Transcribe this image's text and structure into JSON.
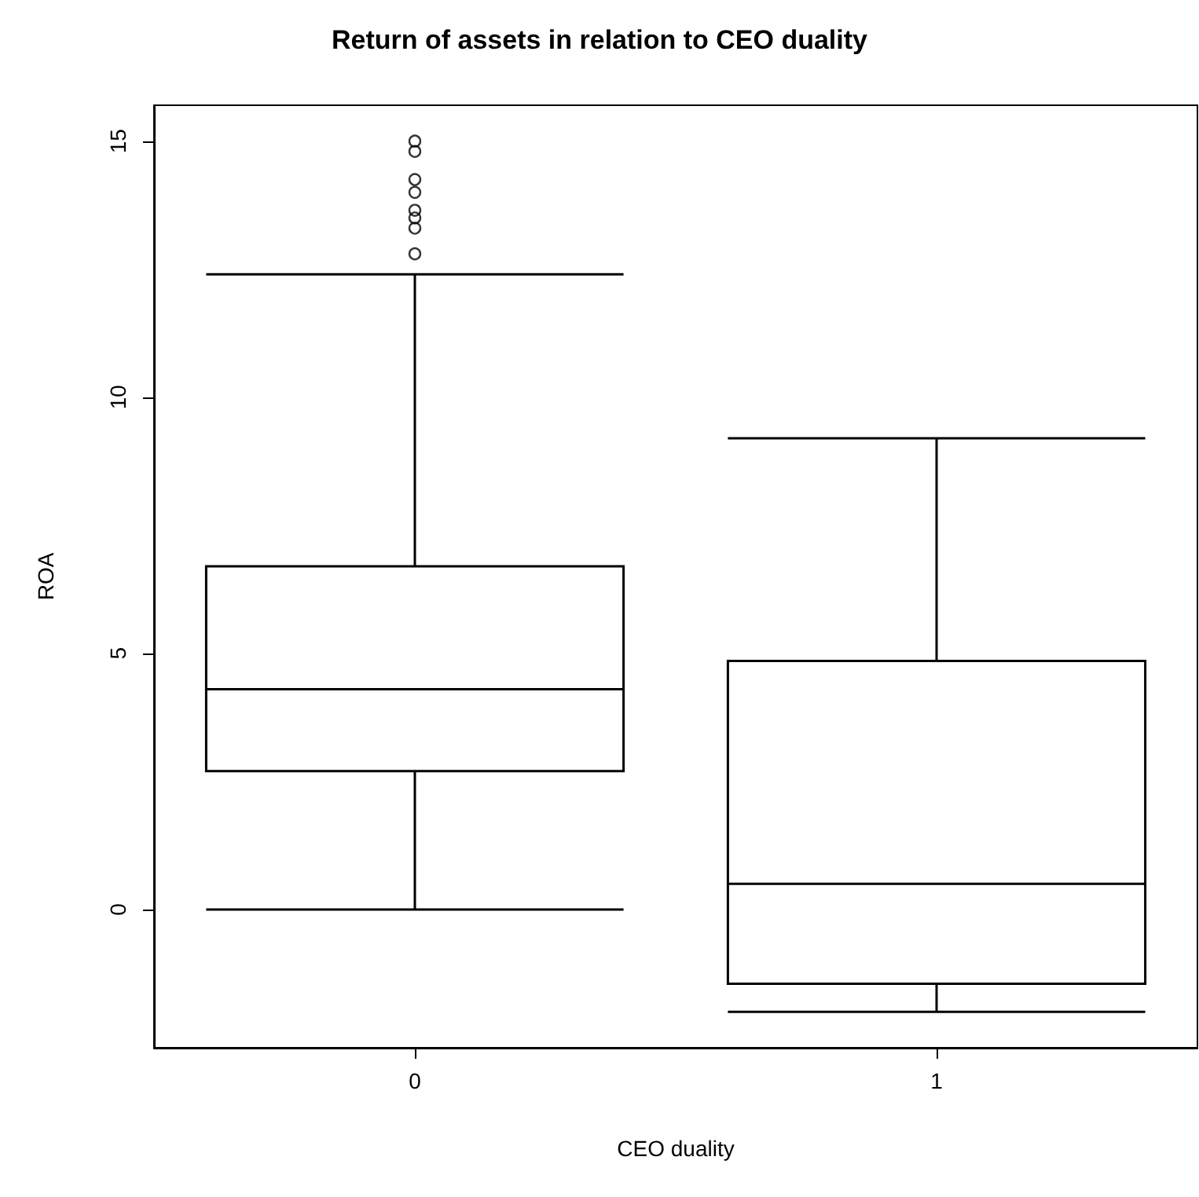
{
  "chart_data": {
    "type": "box",
    "title": "Return of assets in relation to CEO duality",
    "xlabel": "CEO duality",
    "ylabel": "ROA",
    "categories": [
      "0",
      "1"
    ],
    "boxes": [
      {
        "low": 0,
        "q1": 2.7,
        "median": 4.3,
        "q3": 6.7,
        "high": 12.4,
        "outliers": [
          15.0,
          14.8,
          14.25,
          14.0,
          13.65,
          13.5,
          13.3,
          12.8
        ]
      },
      {
        "low": -2.0,
        "q1": -1.45,
        "median": 0.5,
        "q3": 4.85,
        "high": 9.2
      }
    ],
    "color": "#000000",
    "ylim": [
      -2.7,
      15.7
    ],
    "yticks": [
      0,
      5,
      10,
      15
    ],
    "grid": false
  }
}
